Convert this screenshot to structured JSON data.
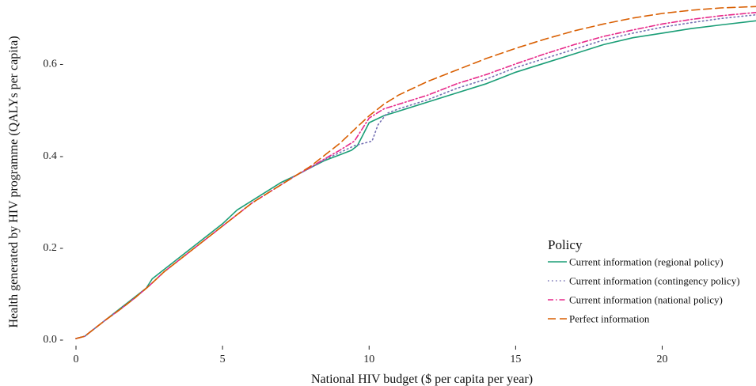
{
  "chart_data": {
    "type": "line",
    "xlabel": "National HIV budget ($ per capita per year)",
    "ylabel": "Health generated by HIV programme (QALYs per capita)",
    "xlim": [
      0,
      23.2
    ],
    "ylim": [
      0,
      0.72
    ],
    "xticks": [
      0,
      5,
      10,
      15,
      20
    ],
    "xtick_labels": [
      "0",
      "5",
      "10",
      "15",
      "20"
    ],
    "yticks": [
      0.0,
      0.2,
      0.4,
      0.6
    ],
    "ytick_labels": [
      "0.0 -",
      "0.2 -",
      "0.4 -",
      "0.6 -"
    ],
    "grid": false,
    "legend": {
      "title": "Policy",
      "position": "bottom-right"
    },
    "series": [
      {
        "name": "Current information (regional policy)",
        "color": "#1b9e77",
        "dash": "solid",
        "points": [
          [
            0,
            0
          ],
          [
            0.3,
            0.005
          ],
          [
            0.5,
            0.015
          ],
          [
            1,
            0.04
          ],
          [
            1.5,
            0.065
          ],
          [
            2,
            0.09
          ],
          [
            2.4,
            0.11
          ],
          [
            2.6,
            0.13
          ],
          [
            3,
            0.15
          ],
          [
            3.5,
            0.175
          ],
          [
            4,
            0.2
          ],
          [
            4.5,
            0.225
          ],
          [
            5,
            0.25
          ],
          [
            5.5,
            0.28
          ],
          [
            6,
            0.3
          ],
          [
            6.5,
            0.32
          ],
          [
            7,
            0.34
          ],
          [
            7.5,
            0.355
          ],
          [
            8,
            0.372
          ],
          [
            8.5,
            0.388
          ],
          [
            9,
            0.4
          ],
          [
            9.4,
            0.41
          ],
          [
            9.6,
            0.42
          ],
          [
            9.8,
            0.445
          ],
          [
            10,
            0.47
          ],
          [
            10.5,
            0.485
          ],
          [
            11,
            0.495
          ],
          [
            12,
            0.515
          ],
          [
            13,
            0.535
          ],
          [
            14,
            0.555
          ],
          [
            15,
            0.58
          ],
          [
            16,
            0.6
          ],
          [
            17,
            0.62
          ],
          [
            18,
            0.64
          ],
          [
            19,
            0.655
          ],
          [
            20,
            0.665
          ],
          [
            21,
            0.675
          ],
          [
            22,
            0.683
          ],
          [
            23.2,
            0.692
          ]
        ]
      },
      {
        "name": "Current information (contingency policy)",
        "color": "#7570b3",
        "dash": "dotted",
        "points": [
          [
            0,
            0
          ],
          [
            0.3,
            0.005
          ],
          [
            0.5,
            0.015
          ],
          [
            1,
            0.04
          ],
          [
            1.5,
            0.063
          ],
          [
            2,
            0.088
          ],
          [
            2.5,
            0.115
          ],
          [
            3,
            0.145
          ],
          [
            3.5,
            0.17
          ],
          [
            4,
            0.195
          ],
          [
            4.5,
            0.22
          ],
          [
            5,
            0.245
          ],
          [
            5.5,
            0.27
          ],
          [
            6,
            0.295
          ],
          [
            6.5,
            0.315
          ],
          [
            7,
            0.335
          ],
          [
            7.5,
            0.355
          ],
          [
            8,
            0.372
          ],
          [
            8.5,
            0.39
          ],
          [
            9,
            0.405
          ],
          [
            9.5,
            0.42
          ],
          [
            9.8,
            0.425
          ],
          [
            10.1,
            0.43
          ],
          [
            10.3,
            0.465
          ],
          [
            10.6,
            0.49
          ],
          [
            11,
            0.5
          ],
          [
            12,
            0.52
          ],
          [
            13,
            0.545
          ],
          [
            14,
            0.565
          ],
          [
            15,
            0.59
          ],
          [
            16,
            0.61
          ],
          [
            17,
            0.63
          ],
          [
            18,
            0.65
          ],
          [
            19,
            0.665
          ],
          [
            20,
            0.678
          ],
          [
            21,
            0.688
          ],
          [
            22,
            0.697
          ],
          [
            23.2,
            0.705
          ]
        ]
      },
      {
        "name": "Current information (national policy)",
        "color": "#e7298a",
        "dash": "dashdot",
        "points": [
          [
            0,
            0
          ],
          [
            0.3,
            0.005
          ],
          [
            0.5,
            0.015
          ],
          [
            1,
            0.04
          ],
          [
            1.5,
            0.063
          ],
          [
            2,
            0.088
          ],
          [
            2.5,
            0.115
          ],
          [
            3,
            0.145
          ],
          [
            3.5,
            0.17
          ],
          [
            4,
            0.195
          ],
          [
            4.5,
            0.22
          ],
          [
            5,
            0.245
          ],
          [
            5.5,
            0.27
          ],
          [
            6,
            0.295
          ],
          [
            6.5,
            0.315
          ],
          [
            7,
            0.335
          ],
          [
            7.5,
            0.355
          ],
          [
            8,
            0.373
          ],
          [
            8.5,
            0.392
          ],
          [
            9,
            0.41
          ],
          [
            9.5,
            0.43
          ],
          [
            10,
            0.48
          ],
          [
            10.5,
            0.5
          ],
          [
            11,
            0.51
          ],
          [
            12,
            0.53
          ],
          [
            13,
            0.555
          ],
          [
            14,
            0.575
          ],
          [
            15,
            0.598
          ],
          [
            16,
            0.62
          ],
          [
            17,
            0.64
          ],
          [
            18,
            0.658
          ],
          [
            19,
            0.672
          ],
          [
            20,
            0.685
          ],
          [
            21,
            0.695
          ],
          [
            22,
            0.703
          ],
          [
            23.2,
            0.71
          ]
        ]
      },
      {
        "name": "Perfect information",
        "color": "#d95f02",
        "dash": "longdash",
        "points": [
          [
            0,
            0
          ],
          [
            0.3,
            0.005
          ],
          [
            0.5,
            0.015
          ],
          [
            1,
            0.04
          ],
          [
            1.5,
            0.063
          ],
          [
            2,
            0.088
          ],
          [
            2.5,
            0.115
          ],
          [
            3,
            0.145
          ],
          [
            3.5,
            0.17
          ],
          [
            4,
            0.195
          ],
          [
            4.5,
            0.22
          ],
          [
            5,
            0.245
          ],
          [
            5.5,
            0.27
          ],
          [
            6,
            0.295
          ],
          [
            6.5,
            0.315
          ],
          [
            7,
            0.335
          ],
          [
            7.5,
            0.355
          ],
          [
            8,
            0.375
          ],
          [
            8.5,
            0.4
          ],
          [
            9,
            0.425
          ],
          [
            9.5,
            0.455
          ],
          [
            10,
            0.485
          ],
          [
            10.5,
            0.51
          ],
          [
            11,
            0.53
          ],
          [
            12,
            0.56
          ],
          [
            13,
            0.585
          ],
          [
            14,
            0.61
          ],
          [
            15,
            0.632
          ],
          [
            16,
            0.652
          ],
          [
            17,
            0.67
          ],
          [
            18,
            0.685
          ],
          [
            19,
            0.698
          ],
          [
            20,
            0.708
          ],
          [
            21,
            0.715
          ],
          [
            22,
            0.72
          ],
          [
            23.2,
            0.723
          ]
        ]
      }
    ]
  }
}
